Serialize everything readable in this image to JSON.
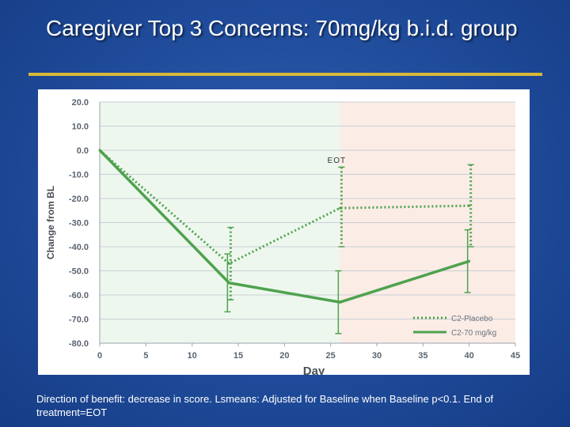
{
  "title": {
    "bold": "Caregiver Top 3 Concerns:",
    "rest": " 70mg/kg b.i.d. group"
  },
  "footnote": "Direction of benefit: decrease in score. Lsmeans: Adjusted for Baseline when Baseline p<0.1. End of treatment=EOT",
  "chart_data": {
    "type": "line",
    "xlabel": "Day",
    "ylabel": "Change from BL",
    "xlim": [
      0,
      45
    ],
    "ylim": [
      -80,
      20
    ],
    "x_ticks": [
      0,
      5,
      10,
      15,
      20,
      25,
      30,
      35,
      40,
      45
    ],
    "y_ticks": [
      20,
      10,
      0,
      -10,
      -20,
      -30,
      -40,
      -50,
      -60,
      -70,
      -80
    ],
    "y_tick_labels": [
      "20.0",
      "10.0",
      "0.0",
      "-10.0",
      "-20.0",
      "-30.0",
      "-40.0",
      "-50.0",
      "-60.0",
      "-70.0",
      "-80.0"
    ],
    "eot_label": "EOT",
    "eot_day": 26,
    "regions": [
      {
        "name": "treatment",
        "from": 0,
        "to": 26,
        "color": "#eef7ee"
      },
      {
        "name": "post-treatment",
        "from": 26,
        "to": 45,
        "color": "#fbece6"
      }
    ],
    "series": [
      {
        "name": "C2-Placebo",
        "style": "dotted",
        "color": "#4ea24e",
        "x": [
          0,
          14,
          26,
          40
        ],
        "y": [
          0,
          -47,
          -24,
          -23
        ],
        "err_low": [
          null,
          -62,
          -40,
          -40
        ],
        "err_high": [
          null,
          -32,
          -7,
          -6
        ]
      },
      {
        "name": "C2-70 mg/kg",
        "style": "solid",
        "color": "#4ea24e",
        "x": [
          0,
          14,
          26,
          40
        ],
        "y": [
          0,
          -55,
          -63,
          -46
        ],
        "err_low": [
          null,
          -67,
          -76,
          -59
        ],
        "err_high": [
          null,
          -43,
          -50,
          -33
        ]
      }
    ],
    "legend": [
      "C2-Placebo",
      "C2-70 mg/kg"
    ],
    "legend_position": "bottom-right"
  }
}
